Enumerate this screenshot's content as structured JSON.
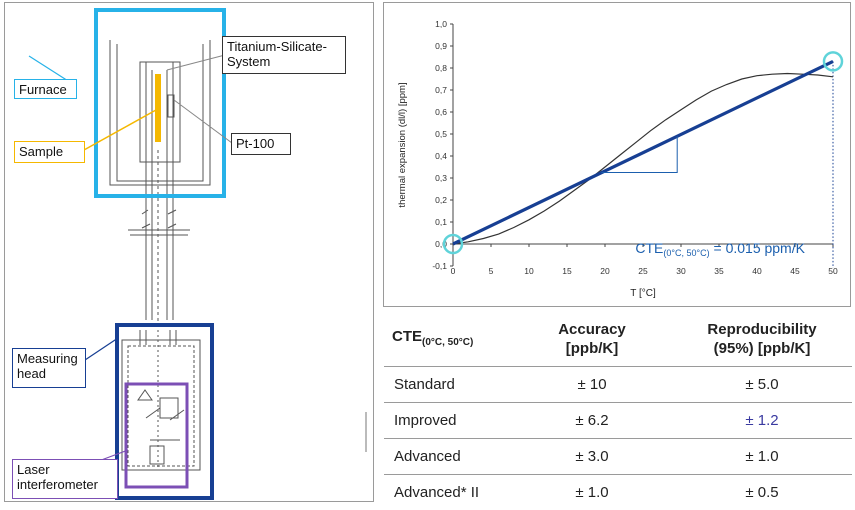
{
  "apparatus": {
    "labels": {
      "furnace": "Furnace",
      "sample": "Sample",
      "titanium": "Titanium-Silicate-\nSystem",
      "pt100": "Pt-100",
      "measuring_head": "Measuring\nhead",
      "laser": "Laser\ninterferometer"
    },
    "colors": {
      "furnace": "#27b2e8",
      "sample": "#f5b800",
      "measuring_head": "#173f93",
      "laser": "#7c4fb5"
    }
  },
  "chart_data": {
    "type": "line",
    "ylabel": "thermal expansion (dl/l) [ppm]",
    "xlabel": "T [°C]",
    "xlim": [
      0,
      50
    ],
    "ylim": [
      -0.1,
      1.0
    ],
    "x_ticks": [
      "0",
      "5",
      "10",
      "15",
      "20",
      "25",
      "30",
      "35",
      "40",
      "45",
      "50"
    ],
    "y_ticks": [
      "-0,1",
      "0,0",
      "0,1",
      "0,2",
      "0,3",
      "0,4",
      "0,5",
      "0,6",
      "0,7",
      "0,8",
      "0,9",
      "1,0"
    ],
    "series": [
      {
        "x": [
          0,
          2,
          4,
          6,
          8,
          10,
          12,
          14,
          16,
          18,
          20,
          22,
          24,
          26,
          28,
          30,
          32,
          34,
          36,
          38,
          40,
          42,
          44,
          46,
          48,
          50
        ],
        "y": [
          0.0,
          0.01,
          0.025,
          0.045,
          0.075,
          0.11,
          0.15,
          0.195,
          0.245,
          0.295,
          0.35,
          0.405,
          0.46,
          0.515,
          0.565,
          0.61,
          0.655,
          0.695,
          0.725,
          0.75,
          0.765,
          0.772,
          0.775,
          0.772,
          0.768,
          0.76
        ],
        "color": "#333333"
      },
      {
        "x": [
          0,
          50
        ],
        "y": [
          0.0,
          0.83
        ],
        "color": "#173f93"
      }
    ],
    "annotation": {
      "main": "CTE",
      "sub": "(0°C, 50°C)",
      "rest": " = 0.015 ppm/K",
      "color": "#1b5fae"
    }
  },
  "table": {
    "header": {
      "col0_main": "CTE",
      "col0_sub": "(0°C, 50°C)",
      "col1": [
        "Accuracy",
        "[ppb/K]"
      ],
      "col2": [
        "Reproducibility",
        "(95%) [ppb/K]"
      ]
    },
    "rows": [
      {
        "name": "Standard",
        "accuracy": "± 10",
        "repro": "± 5.0"
      },
      {
        "name": "Improved",
        "accuracy": "± 6.2",
        "repro": "± 1.2"
      },
      {
        "name": "Advanced",
        "accuracy": "± 3.0",
        "repro": "± 1.0"
      },
      {
        "name": "Advanced* II",
        "accuracy": "± 1.0",
        "repro": "± 0.5"
      }
    ]
  }
}
